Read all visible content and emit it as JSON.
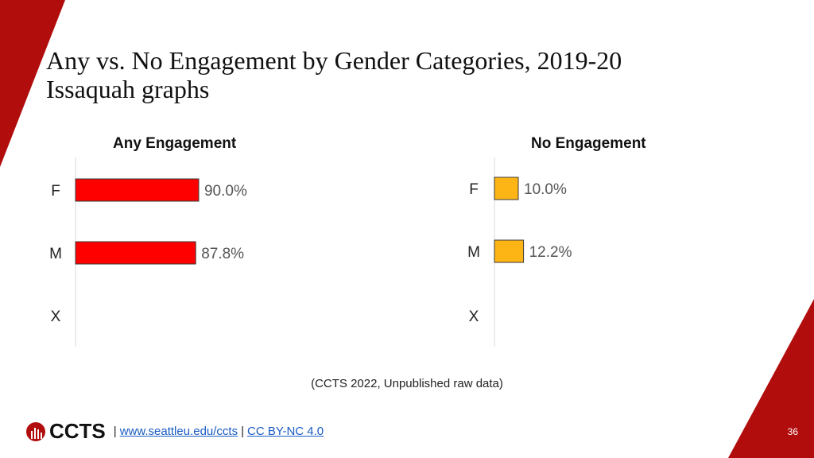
{
  "title": {
    "line1": "Any vs. No Engagement by Gender Categories, 2019-20",
    "line2": "Issaquah graphs"
  },
  "colors": {
    "brand_red": "#b10d0d",
    "any_bar": "#ff0000",
    "no_bar": "#fdb515"
  },
  "chart_data": [
    {
      "type": "bar",
      "orientation": "horizontal",
      "title": "Any Engagement",
      "categories": [
        "F",
        "M",
        "X"
      ],
      "values": [
        90.0,
        87.8,
        null
      ],
      "labels": [
        "90.0%",
        "87.8%",
        ""
      ],
      "xlim": [
        0,
        100
      ]
    },
    {
      "type": "bar",
      "orientation": "horizontal",
      "title": "No Engagement",
      "categories": [
        "F",
        "M",
        "X"
      ],
      "values": [
        10.0,
        12.2,
        null
      ],
      "labels": [
        "10.0%",
        "12.2%",
        ""
      ],
      "xlim": [
        0,
        100
      ]
    }
  ],
  "source": "(CCTS 2022, Unpublished raw data)",
  "footer": {
    "logo_text": "CCTS",
    "separator": "|",
    "link1": "www.seattleu.edu/ccts",
    "link2": "CC BY-NC 4.0"
  },
  "page_number": "36"
}
